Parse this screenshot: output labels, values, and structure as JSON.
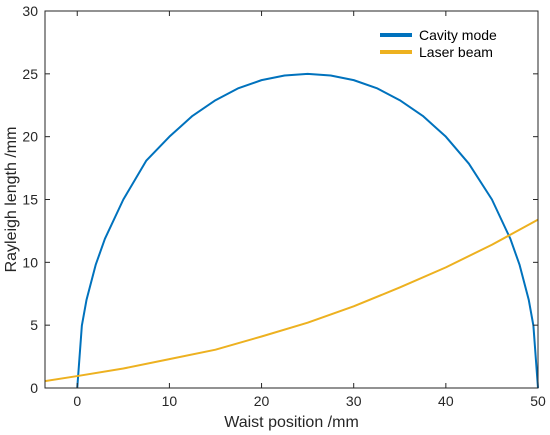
{
  "chart_data": {
    "type": "line",
    "xlabel": "Waist position /mm",
    "ylabel": "Rayleigh length /mm",
    "xlim": [
      -3.5,
      50
    ],
    "ylim": [
      0,
      30
    ],
    "x_ticks": [
      0,
      10,
      20,
      30,
      40,
      50
    ],
    "y_ticks": [
      0,
      5,
      10,
      15,
      20,
      25,
      30
    ],
    "grid": false,
    "legend_position": "top-right",
    "series": [
      {
        "name": "Cavity mode",
        "color": "#0072BD",
        "x": [
          0,
          0.5,
          1,
          2,
          3,
          5,
          7.5,
          10,
          12.5,
          15,
          17.5,
          20,
          22.5,
          25,
          27.5,
          30,
          32.5,
          35,
          37.5,
          40,
          42.5,
          45,
          47,
          48,
          49,
          49.5,
          50
        ],
        "y": [
          0,
          4.97,
          7,
          9.8,
          11.87,
          15,
          18.1,
          20,
          21.65,
          22.9,
          23.86,
          24.5,
          24.87,
          25,
          24.87,
          24.5,
          23.86,
          22.9,
          21.65,
          20,
          17.85,
          15,
          11.87,
          9.8,
          7,
          4.97,
          0
        ]
      },
      {
        "name": "Laser beam",
        "color": "#EDB120",
        "x": [
          -3.5,
          0,
          5,
          10,
          15,
          20,
          25,
          30,
          35,
          40,
          45,
          50
        ],
        "y": [
          0.55,
          0.95,
          1.55,
          2.3,
          3.05,
          4.1,
          5.2,
          6.5,
          8.0,
          9.6,
          11.4,
          13.4
        ]
      }
    ]
  }
}
